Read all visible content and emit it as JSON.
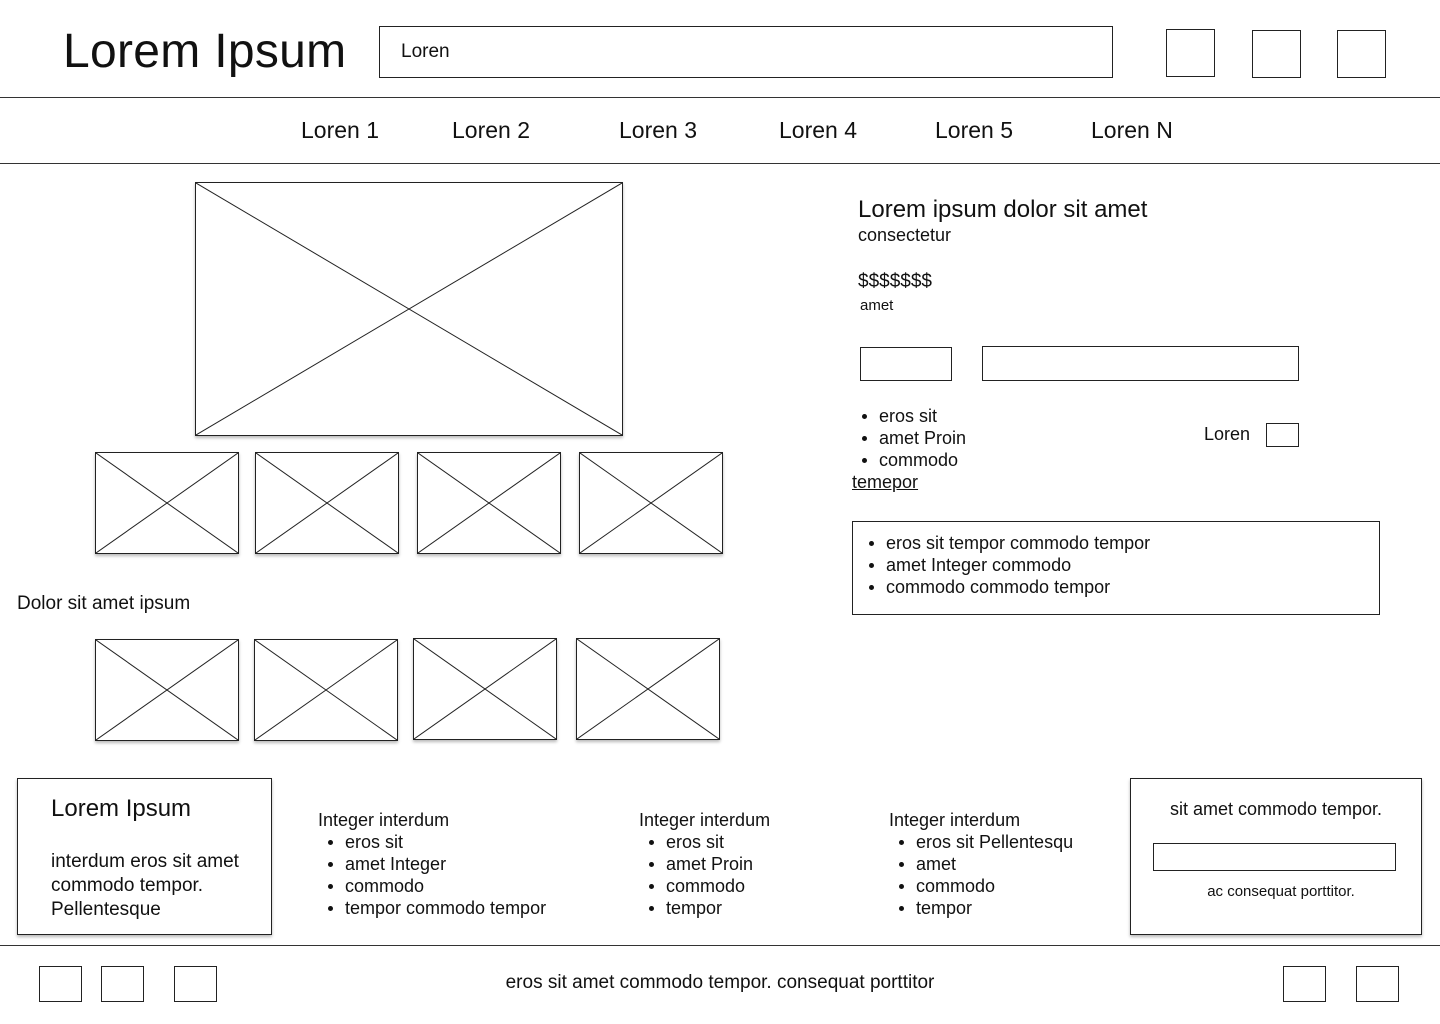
{
  "header": {
    "logo": "Lorem Ipsum",
    "search_value": "Loren",
    "icons": [
      "header-icon-1",
      "header-icon-2",
      "header-icon-3"
    ]
  },
  "nav": {
    "items": [
      "Loren 1",
      "Loren 2",
      "Loren 3",
      "Loren 4",
      "Loren 5",
      "Loren N"
    ]
  },
  "gallery": {
    "main_image": "image-placeholder",
    "section_label": "Dolor sit amet ipsum"
  },
  "product": {
    "title": "Lorem ipsum dolor sit amet",
    "subtitle": "consectetur",
    "price": "$$$$$$$",
    "price_note": "amet",
    "features": [
      "eros sit",
      "amet Proin",
      "commodo"
    ],
    "link": "temepor",
    "option_label": "Loren",
    "details": [
      "eros sit tempor commodo tempor",
      "amet Integer commodo",
      "commodo commodo tempor"
    ]
  },
  "footer": {
    "brand": {
      "title": "Lorem Ipsum",
      "text": "interdum eros sit amet commodo tempor. Pellentesque"
    },
    "columns": [
      {
        "heading": "Integer interdum",
        "items": [
          "eros sit",
          "amet Integer",
          "commodo",
          "tempor commodo tempor"
        ]
      },
      {
        "heading": "Integer interdum",
        "items": [
          "eros sit",
          "amet Proin",
          "commodo",
          "tempor"
        ]
      },
      {
        "heading": "Integer interdum",
        "items": [
          "eros sit Pellentesqu",
          "amet",
          "commodo",
          "tempor"
        ]
      }
    ],
    "newsletter": {
      "title": "sit amet commodo tempor.",
      "input_value": "",
      "note": "ac consequat porttitor."
    }
  },
  "bottom_bar": {
    "text": "eros sit amet commodo tempor. consequat porttitor"
  }
}
